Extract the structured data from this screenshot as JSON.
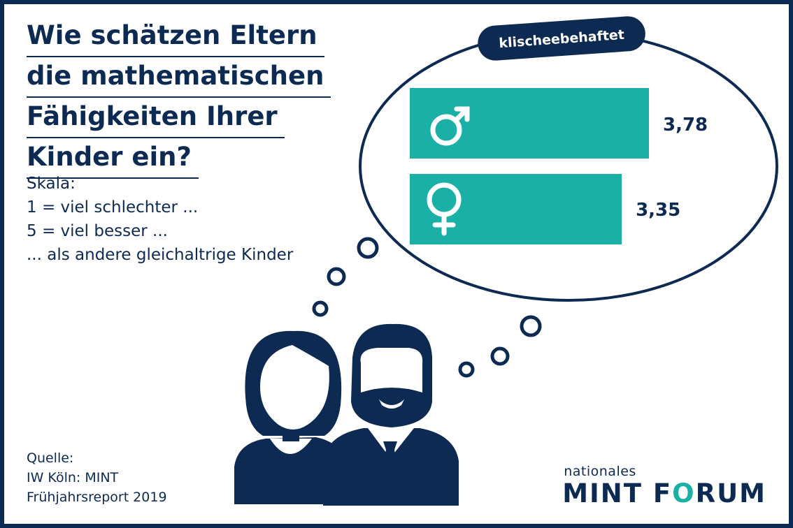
{
  "title_lines": [
    "Wie schätzen Eltern",
    "die mathematischen",
    "Fähigkeiten Ihrer",
    "Kinder ein?"
  ],
  "scale_lines": [
    "Skala:",
    "1  = viel schlechter ...",
    "5 = viel besser ...",
    "... als andere gleichaltrige Kinder"
  ],
  "source_lines": [
    "Quelle:",
    "IW Köln: MINT",
    "Frühjahrsreport 2019"
  ],
  "bubble_tag": "klischeebehaftet",
  "logo": {
    "small": "nationales",
    "big_prefix": "MINT F",
    "big_o": "O",
    "big_suffix": "RUM"
  },
  "colors": {
    "navy": "#0d2a52",
    "teal": "#1ab0a5",
    "white": "#ffffff"
  },
  "chart_data": {
    "type": "bar",
    "orientation": "horizontal",
    "categories": [
      "male-symbol",
      "female-symbol"
    ],
    "values": [
      3.78,
      3.35
    ],
    "value_labels": [
      "3,78",
      "3,35"
    ],
    "title": "Wie schätzen Eltern die mathematischen Fähigkeiten Ihrer Kinder ein?",
    "tag": "klischeebehaftet",
    "xlim": [
      0,
      5
    ]
  }
}
